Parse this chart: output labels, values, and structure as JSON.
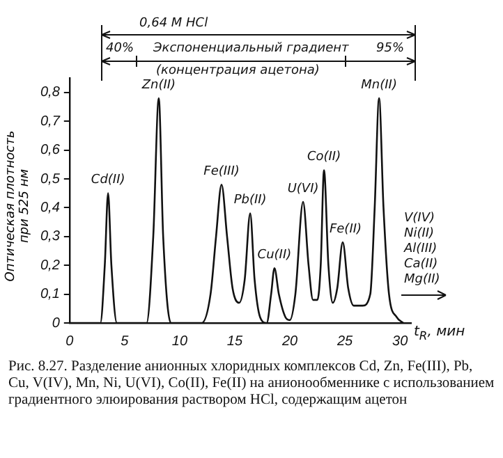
{
  "chart_data": {
    "type": "line",
    "xlabel": "t$_{R}$, мин",
    "ylabel": "Оптическая плотность при 525 нм",
    "x": [
      0,
      2.8,
      3.2,
      3.5,
      3.8,
      4.3,
      7.0,
      7.6,
      8.1,
      8.5,
      9.2,
      12.0,
      12.8,
      13.3,
      13.8,
      14.3,
      14.8,
      15.4,
      15.9,
      16.4,
      16.8,
      17.3,
      17.9,
      18.3,
      18.6,
      19.0,
      19.6,
      20.0,
      20.5,
      21.2,
      21.7,
      22.1,
      22.5,
      22.8,
      23.1,
      23.5,
      23.9,
      24.3,
      24.8,
      25.3,
      25.8,
      26.6,
      27.3,
      27.7,
      28.1,
      28.5,
      29.0,
      29.7,
      30.3
    ],
    "series": [
      {
        "color": "#111111",
        "values": [
          0,
          0,
          0.2,
          0.45,
          0.2,
          0,
          0,
          0.3,
          0.78,
          0.3,
          0,
          0,
          0.1,
          0.3,
          0.48,
          0.3,
          0.12,
          0.07,
          0.15,
          0.38,
          0.15,
          0.02,
          0,
          0.1,
          0.19,
          0.1,
          0.02,
          0.01,
          0.1,
          0.42,
          0.2,
          0.08,
          0.08,
          0.2,
          0.53,
          0.2,
          0.07,
          0.12,
          0.28,
          0.12,
          0.06,
          0.06,
          0.1,
          0.4,
          0.78,
          0.4,
          0.1,
          0.02,
          0
        ]
      }
    ],
    "xlim": [
      0,
      31
    ],
    "xticks": [
      0,
      5,
      10,
      15,
      20,
      25,
      30
    ],
    "ylim": [
      0,
      0.85
    ],
    "yticks": [
      0,
      {
        "value": 0.1,
        "label": "0,1"
      },
      {
        "value": 0.2,
        "label": "0,2"
      },
      {
        "value": 0.3,
        "label": "0,3"
      },
      {
        "value": 0.4,
        "label": "0,4"
      },
      {
        "value": 0.5,
        "label": "0,5"
      },
      {
        "value": 0.6,
        "label": "0,6"
      },
      {
        "value": 0.7,
        "label": "0,7"
      },
      {
        "value": 0.8,
        "label": "0,8"
      }
    ],
    "grid": false,
    "legend": false,
    "marker": "none",
    "line_style": "solid",
    "annotations": [
      "0,64 M HCl",
      "40%",
      "Экспоненциальный градиент",
      "95%",
      "(концентрация ацетона)",
      "V(IV)",
      "Ni(II)",
      "Al(III)",
      "Ca(II)",
      "Mg(II)",
      "Рис. 8.27. Разделение анионных хлоридных комплексов Cd, Zn, Fe(III), Pb, Cu, V(IV), Mn, Ni, U(VI), Co(II), Fe(II) на анионообменнике с использованием градиентного элюирования раствором HCl, содержащим ацетон",
      {
        "text": "Cd(II)",
        "x": 3.5,
        "y": 0.45
      },
      {
        "text": "Zn(II)",
        "x": 8.1,
        "y": 0.78
      },
      {
        "text": "Fe(III)",
        "x": 13.8,
        "y": 0.48
      },
      {
        "text": "Pb(II)",
        "x": 16.4,
        "y": 0.38
      },
      {
        "text": "Cu(II)",
        "x": 18.6,
        "y": 0.19
      },
      {
        "text": "U(VI)",
        "x": 21.2,
        "y": 0.42
      },
      {
        "text": "Co(II)",
        "x": 23.1,
        "y": 0.53
      },
      {
        "text": "Fe(II)",
        "x": 24.8,
        "y": 0.28
      },
      {
        "text": "Mn(II)",
        "x": 28.1,
        "y": 0.78
      }
    ]
  }
}
